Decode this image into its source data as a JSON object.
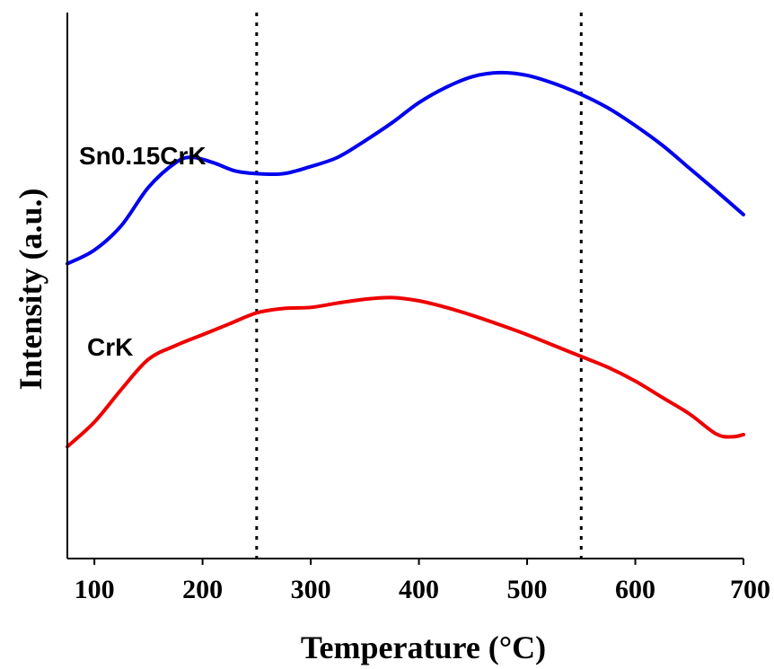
{
  "chart_data": {
    "type": "line",
    "title": "",
    "xlabel": "Temperature (°C)",
    "ylabel": "Intensity (a.u.)",
    "xlim": [
      75,
      700
    ],
    "ylim": [
      0,
      100
    ],
    "xticks": [
      100,
      200,
      300,
      400,
      500,
      600,
      700
    ],
    "yticks_shown": false,
    "grid": false,
    "legend": "none (series labeled inline)",
    "reference_lines_x": [
      250,
      550
    ],
    "series": [
      {
        "name": "Sn0.15CrK",
        "color": "#0000ee",
        "x": [
          75,
          100,
          125,
          150,
          175,
          190,
          210,
          230,
          250,
          275,
          300,
          325,
          350,
          375,
          400,
          425,
          450,
          475,
          500,
          525,
          550,
          575,
          600,
          625,
          650,
          675,
          700
        ],
        "y": [
          54.0,
          56.5,
          61.0,
          68.0,
          72.5,
          73.5,
          72.5,
          71.0,
          70.5,
          70.5,
          71.8,
          73.5,
          76.5,
          79.8,
          83.5,
          86.3,
          88.3,
          89.0,
          88.5,
          87.0,
          85.0,
          82.5,
          79.3,
          75.7,
          71.5,
          67.3,
          63.0
        ]
      },
      {
        "name": "CrK",
        "color": "#ee0000",
        "x": [
          75,
          100,
          125,
          150,
          175,
          200,
          225,
          250,
          275,
          300,
          325,
          350,
          375,
          400,
          425,
          450,
          475,
          500,
          525,
          550,
          575,
          600,
          625,
          650,
          675,
          690,
          700
        ],
        "y": [
          20.5,
          25.0,
          31.0,
          36.5,
          39.0,
          41.0,
          43.0,
          45.0,
          45.8,
          46.0,
          46.8,
          47.5,
          47.8,
          47.2,
          46.0,
          44.5,
          42.8,
          41.0,
          39.0,
          37.0,
          35.0,
          32.5,
          29.5,
          26.5,
          22.8,
          22.3,
          22.7
        ]
      }
    ]
  }
}
